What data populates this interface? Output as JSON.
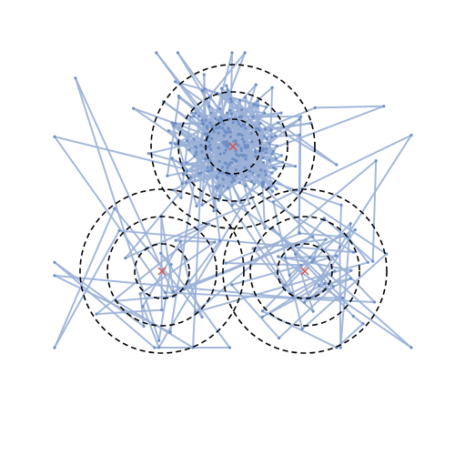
{
  "diagram": {
    "type": "random-walk-over-concentric-circles",
    "colors": {
      "background": "#ffffff",
      "path_line": "#9ab0d6",
      "path_point": "#6e8fc6",
      "circle": "#000000",
      "center_marker": "#d9534f"
    },
    "circle_style": "dashed",
    "center_marker_symbol": "x",
    "circle_groups": [
      {
        "name": "top"
      },
      {
        "name": "bottom-left"
      },
      {
        "name": "bottom-right"
      }
    ]
  }
}
